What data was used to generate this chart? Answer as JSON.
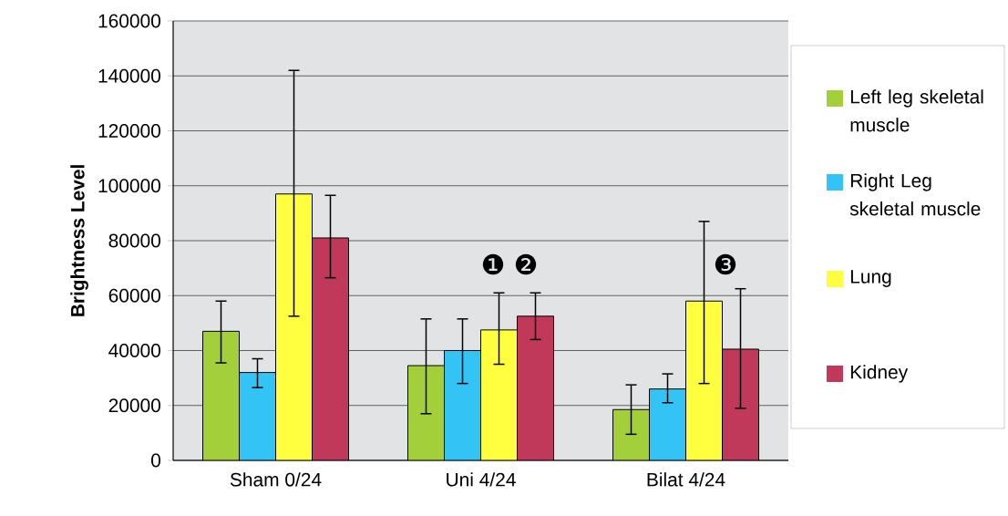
{
  "chart_data": {
    "type": "bar",
    "ylabel": "Brightness Level",
    "categories": [
      "Sham 0/24",
      "Uni 4/24",
      "Bilat 4/24"
    ],
    "series": [
      {
        "name": "Left leg skeletal muscle",
        "color": "#a3cf3a",
        "values": [
          47000,
          34500,
          18500
        ],
        "errors": [
          [
            35500,
            58000
          ],
          [
            17000,
            51500
          ],
          [
            9500,
            27500
          ]
        ]
      },
      {
        "name": "Right Leg skeletal muscle",
        "color": "#33c4f5",
        "values": [
          32000,
          40000,
          26000
        ],
        "errors": [
          [
            26500,
            37000
          ],
          [
            28000,
            51500
          ],
          [
            21000,
            31500
          ]
        ]
      },
      {
        "name": "Lung",
        "color": "#ffff40",
        "values": [
          97000,
          47500,
          58000
        ],
        "errors": [
          [
            52500,
            142000
          ],
          [
            35000,
            61000
          ],
          [
            28000,
            87000
          ]
        ]
      },
      {
        "name": "Kidney",
        "color": "#c0385a",
        "values": [
          81000,
          52500,
          40500
        ],
        "errors": [
          [
            66500,
            96500
          ],
          [
            44000,
            61000
          ],
          [
            19000,
            62500
          ]
        ]
      }
    ],
    "annotations": [
      "❶",
      "❷",
      "❸"
    ],
    "ylim": [
      0,
      160000
    ],
    "yticks": [
      0,
      20000,
      40000,
      60000,
      80000,
      100000,
      120000,
      140000,
      160000
    ],
    "grid": "y",
    "legend": "right"
  }
}
